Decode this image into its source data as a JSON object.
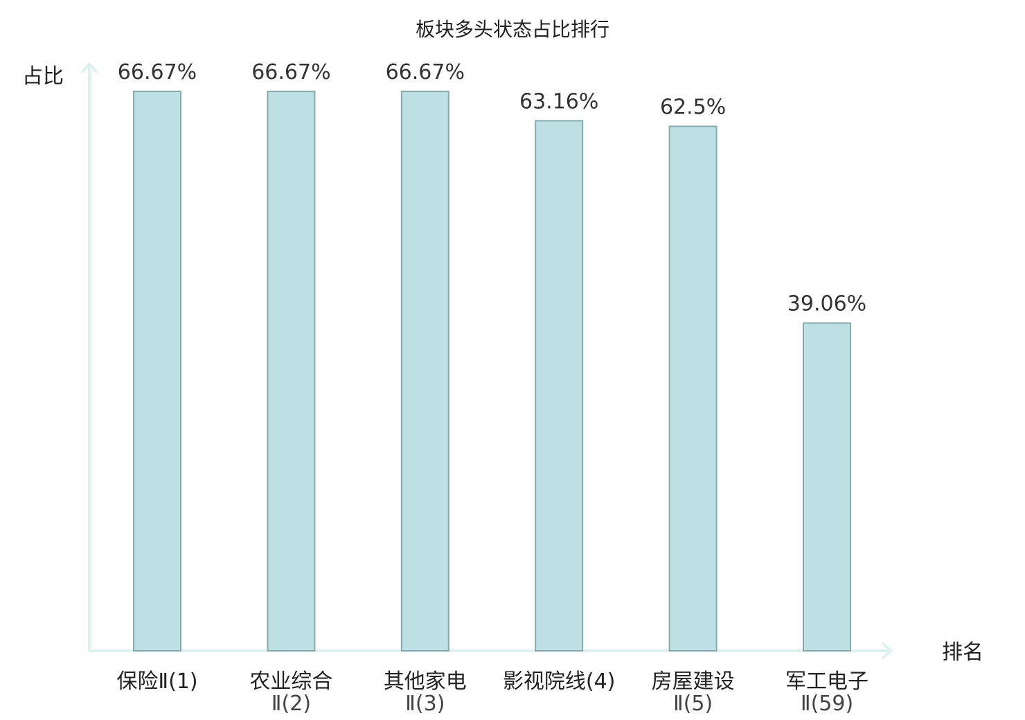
{
  "chart_data": {
    "type": "bar",
    "title": "板块多头状态占比排行",
    "ylabel": "占比",
    "xlabel": "排名",
    "ylim": [
      0,
      70
    ],
    "grid": false,
    "bar_color": "#bce0e3",
    "highlight_color": "#ee1111",
    "categories": [
      {
        "name": "保险Ⅱ(1)",
        "lines": [
          "保险Ⅱ(1)"
        ],
        "value": 66.67,
        "label": "66.67%",
        "highlight": false
      },
      {
        "name": "农业综合Ⅱ(2)",
        "lines": [
          "农业综合",
          "Ⅱ(2)"
        ],
        "value": 66.67,
        "label": "66.67%",
        "highlight": false
      },
      {
        "name": "其他家电Ⅱ(3)",
        "lines": [
          "其他家电",
          "Ⅱ(3)"
        ],
        "value": 66.67,
        "label": "66.67%",
        "highlight": false
      },
      {
        "name": "影视院线(4)",
        "lines": [
          "影视院线(4)"
        ],
        "value": 63.16,
        "label": "63.16%",
        "highlight": false
      },
      {
        "name": "房屋建设Ⅱ(5)",
        "lines": [
          "房屋建设",
          "Ⅱ(5)"
        ],
        "value": 62.5,
        "label": "62.5%",
        "highlight": false
      },
      {
        "name": "军工电子Ⅱ(59)",
        "lines": [
          "军工电子",
          "Ⅱ(59)"
        ],
        "value": 39.06,
        "label": "39.06%",
        "highlight": true
      }
    ]
  }
}
